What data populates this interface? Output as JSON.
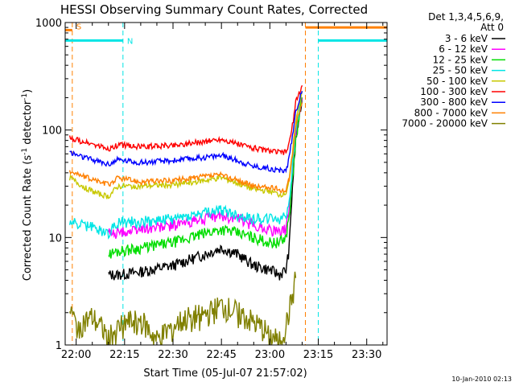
{
  "chart_data": {
    "type": "line",
    "title": "HESSI Observing Summary Count Rates, Corrected",
    "xlabel": "Start Time (05-Jul-07 21:57:02)",
    "ylabel": "Corrected Count Rate (s",
    "ylabel_sup1": "-1",
    "ylabel_mid": " detector",
    "ylabel_sup2": "-1",
    "ylabel_end": ")",
    "y_scale": "log",
    "ylim": [
      1,
      1000
    ],
    "xlim_minutes": [
      -3.4,
      96.3
    ],
    "x_ticks": [
      {
        "label": "22:00",
        "minute": 0
      },
      {
        "label": "22:15",
        "minute": 15
      },
      {
        "label": "22:30",
        "minute": 30
      },
      {
        "label": "22:45",
        "minute": 45
      },
      {
        "label": "23:00",
        "minute": 60
      },
      {
        "label": "23:15",
        "minute": 75
      },
      {
        "label": "23:30",
        "minute": 90
      }
    ],
    "y_ticks": [
      {
        "label": "1",
        "value": 1
      },
      {
        "label": "10",
        "value": 10
      },
      {
        "label": "100",
        "value": 100
      },
      {
        "label": "1000",
        "value": 1000
      }
    ],
    "legend_header": [
      "Det 1,3,4,5,6,9,",
      "Att 0"
    ],
    "legend_position": "right",
    "timestamp": "10-Jan-2010 02:13",
    "series": [
      {
        "name": "3 - 6 keV",
        "color": "#000000",
        "x": [
          10,
          13,
          20,
          30,
          40,
          45,
          50,
          55,
          60,
          63,
          65,
          66,
          67,
          68,
          70
        ],
        "y": [
          4.5,
          4.5,
          4.8,
          5.5,
          7.0,
          8.0,
          7.0,
          5.5,
          5.0,
          4.5,
          5.0,
          8,
          30,
          80,
          200
        ]
      },
      {
        "name": "6 - 12 keV",
        "color": "#ff00ff",
        "x": [
          10,
          13,
          20,
          30,
          40,
          45,
          50,
          55,
          60,
          63,
          65,
          66,
          67,
          68,
          70
        ],
        "y": [
          11,
          11,
          12,
          13,
          15,
          16,
          15,
          13,
          12,
          11,
          12,
          18,
          40,
          90,
          200
        ]
      },
      {
        "name": "12 - 25 keV",
        "color": "#00dd00",
        "x": [
          10,
          13,
          20,
          30,
          40,
          45,
          50,
          55,
          60,
          63,
          65,
          66,
          67,
          68,
          70
        ],
        "y": [
          7,
          7.5,
          8,
          9,
          11,
          12,
          11,
          10,
          9,
          9,
          10,
          16,
          35,
          80,
          200
        ]
      },
      {
        "name": "25 - 50 keV",
        "color": "#00e5e5",
        "x": [
          -2,
          5,
          10,
          13,
          20,
          30,
          40,
          45,
          50,
          55,
          60,
          63,
          65,
          66,
          67,
          68,
          70
        ],
        "y": [
          14,
          12.5,
          11,
          14,
          14,
          15,
          17,
          18,
          16,
          15,
          15,
          15,
          16,
          22,
          45,
          100,
          230
        ]
      },
      {
        "name": "50 - 100 keV",
        "color": "#c8c800",
        "x": [
          -2,
          2,
          6,
          10,
          13,
          20,
          30,
          40,
          45,
          50,
          55,
          60,
          63,
          65,
          66,
          67,
          68,
          70
        ],
        "y": [
          36,
          30,
          26,
          24,
          30,
          30,
          31,
          34,
          36,
          32,
          28,
          27,
          25,
          26,
          34,
          60,
          120,
          230
        ]
      },
      {
        "name": "100 - 300 keV",
        "color": "#ff0000",
        "x": [
          -2,
          2,
          6,
          10,
          13,
          20,
          30,
          40,
          45,
          50,
          55,
          60,
          63,
          65,
          66,
          67,
          68,
          70
        ],
        "y": [
          85,
          78,
          72,
          66,
          73,
          70,
          72,
          78,
          82,
          74,
          68,
          64,
          62,
          62,
          75,
          110,
          180,
          260
        ]
      },
      {
        "name": "300 - 800 keV",
        "color": "#0000ff",
        "x": [
          -2,
          2,
          6,
          10,
          13,
          20,
          30,
          40,
          45,
          50,
          55,
          60,
          63,
          65,
          66,
          67,
          68,
          70
        ],
        "y": [
          62,
          56,
          52,
          48,
          53,
          50,
          52,
          56,
          58,
          52,
          46,
          44,
          42,
          42,
          55,
          90,
          150,
          230
        ]
      },
      {
        "name": "800 - 7000 keV",
        "color": "#ff8000",
        "x": [
          -2,
          2,
          6,
          10,
          13,
          20,
          30,
          40,
          45,
          50,
          55,
          60,
          63,
          65,
          66,
          67,
          68,
          70
        ],
        "y": [
          42,
          37,
          34,
          31,
          36,
          33,
          34,
          37,
          38,
          34,
          30,
          29,
          28,
          27,
          35,
          60,
          110,
          180
        ]
      },
      {
        "name": "7000 - 20000 keV",
        "color": "#808000",
        "x": [
          -2,
          0,
          5,
          10,
          15,
          20,
          25,
          30,
          35,
          40,
          45,
          50,
          55,
          58,
          60,
          63,
          65,
          67,
          68
        ],
        "y": [
          2.2,
          1.5,
          1.8,
          1.2,
          1.6,
          1.7,
          1.1,
          1.5,
          1.8,
          1.9,
          2.3,
          2.0,
          1.6,
          1.4,
          1.2,
          1.1,
          1.5,
          2.8,
          4.2
        ]
      }
    ],
    "flag_lines": [
      {
        "label": "S",
        "color": "#ff8000",
        "y": 850,
        "segments": [
          [
            -3.4,
            -1.2
          ]
        ],
        "markers": [
          -1.2
        ]
      },
      {
        "label": "N",
        "color": "#00e5e5",
        "y": 680,
        "segments": [
          [
            -3.4,
            14.5
          ],
          [
            75,
            96.3
          ]
        ],
        "markers": [
          14.5,
          75
        ]
      },
      {
        "label": "",
        "color": "#ff8000",
        "y": 900,
        "segments": [
          [
            71,
            96.3
          ]
        ],
        "markers": [
          71,
          96.3
        ]
      }
    ]
  }
}
